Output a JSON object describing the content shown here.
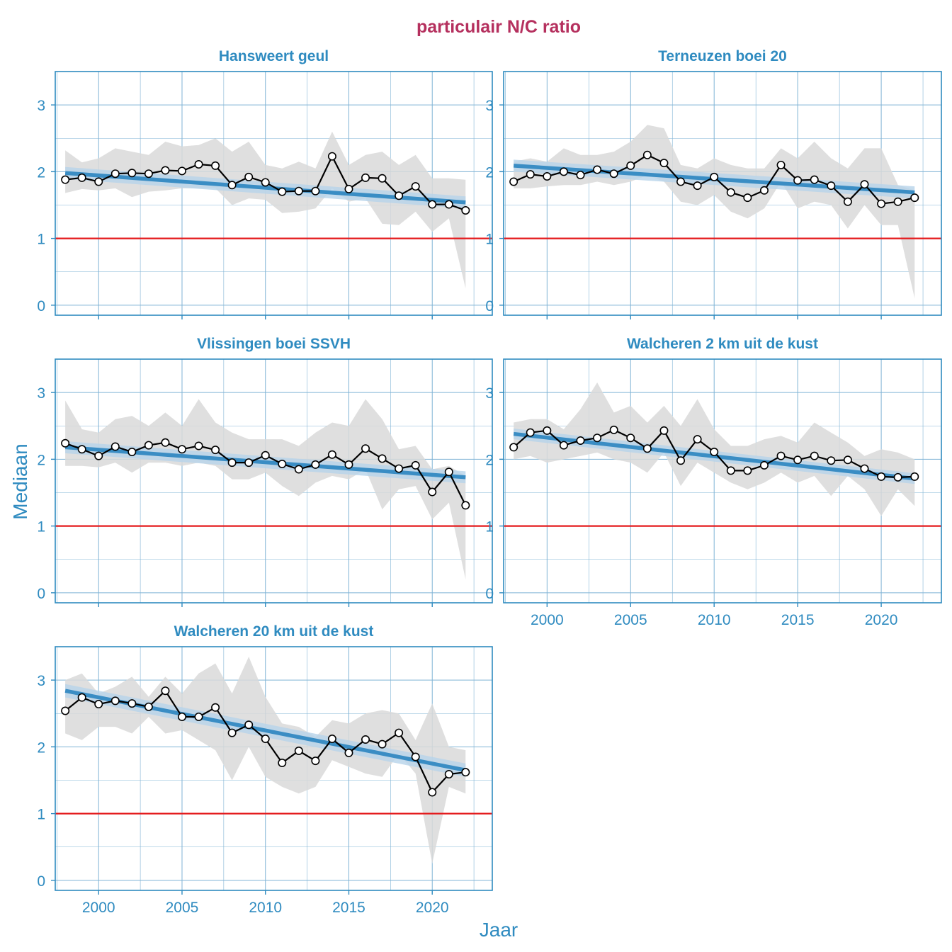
{
  "title": "particulair N/C ratio",
  "xlabel": "Jaar",
  "ylabel": "Mediaan",
  "colors": {
    "title": "#B5305E",
    "text": "#2F8BC0",
    "frame": "#2F8BC0",
    "grid": "#7FB3D5",
    "trend": "#3A8DC4",
    "trend_band": "#B7D3EA",
    "range_band": "#D9D9D9",
    "reference": "#E41A1C",
    "series": "#000000"
  },
  "chart_data": [
    {
      "type": "line",
      "title": "Hansweert geul",
      "x": [
        1998,
        1999,
        2000,
        2001,
        2002,
        2003,
        2004,
        2005,
        2006,
        2007,
        2008,
        2009,
        2010,
        2011,
        2012,
        2013,
        2014,
        2015,
        2016,
        2017,
        2018,
        2019,
        2020,
        2021,
        2022
      ],
      "y": [
        1.88,
        1.91,
        1.85,
        1.97,
        1.98,
        1.97,
        2.02,
        2.01,
        2.11,
        2.09,
        1.8,
        1.92,
        1.84,
        1.7,
        1.71,
        1.71,
        2.23,
        1.74,
        1.91,
        1.9,
        1.64,
        1.78,
        1.51,
        1.51,
        1.42
      ],
      "band_upper": [
        2.32,
        2.14,
        2.2,
        2.35,
        2.3,
        2.25,
        2.45,
        2.38,
        2.4,
        2.5,
        2.3,
        2.45,
        2.1,
        2.05,
        2.15,
        2.05,
        2.6,
        2.1,
        2.25,
        2.3,
        2.1,
        2.25,
        1.9,
        1.9,
        1.88
      ],
      "band_lower": [
        1.68,
        1.74,
        1.72,
        1.75,
        1.62,
        1.7,
        1.72,
        1.75,
        1.75,
        1.75,
        1.5,
        1.6,
        1.58,
        1.38,
        1.4,
        1.45,
        1.75,
        1.55,
        1.6,
        1.22,
        1.2,
        1.4,
        1.1,
        1.3,
        0.25
      ],
      "trend": {
        "x0": 1998,
        "y0": 1.98,
        "x1": 2022,
        "y1": 1.54,
        "band": 0.09
      },
      "reference_y": 1,
      "xlim": [
        1997.4,
        2023.6
      ],
      "ylim": [
        -0.15,
        3.5
      ],
      "yticks": [
        0,
        1,
        2,
        3
      ],
      "xticks": [
        2000,
        2005,
        2010,
        2015,
        2020
      ],
      "show_xtick_labels": false
    },
    {
      "type": "line",
      "title": "Terneuzen boei 20",
      "x": [
        1998,
        1999,
        2000,
        2001,
        2002,
        2003,
        2004,
        2005,
        2006,
        2007,
        2008,
        2009,
        2010,
        2011,
        2012,
        2013,
        2014,
        2015,
        2016,
        2017,
        2018,
        2019,
        2020,
        2021,
        2022
      ],
      "y": [
        1.85,
        1.96,
        1.93,
        2.0,
        1.95,
        2.03,
        1.97,
        2.09,
        2.25,
        2.13,
        1.85,
        1.79,
        1.92,
        1.69,
        1.61,
        1.72,
        2.1,
        1.87,
        1.88,
        1.79,
        1.55,
        1.81,
        1.52,
        1.55,
        1.61
      ],
      "band_upper": [
        2.15,
        2.2,
        2.15,
        2.35,
        2.25,
        2.25,
        2.3,
        2.45,
        2.7,
        2.65,
        2.1,
        2.05,
        2.2,
        2.1,
        2.05,
        2.05,
        2.35,
        2.2,
        2.45,
        2.2,
        2.05,
        2.35,
        2.35,
        1.8,
        1.72
      ],
      "band_lower": [
        1.75,
        1.75,
        1.78,
        1.8,
        1.8,
        1.85,
        1.8,
        1.85,
        1.95,
        1.85,
        1.55,
        1.5,
        1.65,
        1.4,
        1.3,
        1.45,
        1.85,
        1.45,
        1.55,
        1.5,
        1.15,
        1.5,
        1.2,
        1.2,
        0.1
      ],
      "trend": {
        "x0": 1998,
        "y0": 2.09,
        "x1": 2022,
        "y1": 1.69,
        "band": 0.09
      },
      "reference_y": 1,
      "xlim": [
        1997.4,
        2023.6
      ],
      "ylim": [
        -0.15,
        3.5
      ],
      "yticks": [
        0,
        1,
        2,
        3
      ],
      "xticks": [
        2000,
        2005,
        2010,
        2015,
        2020
      ],
      "show_xtick_labels": false
    },
    {
      "type": "line",
      "title": "Vlissingen boei SSVH",
      "x": [
        1998,
        1999,
        2000,
        2001,
        2002,
        2003,
        2004,
        2005,
        2006,
        2007,
        2008,
        2009,
        2010,
        2011,
        2012,
        2013,
        2014,
        2015,
        2016,
        2017,
        2018,
        2019,
        2020,
        2021,
        2022
      ],
      "y": [
        2.24,
        2.15,
        2.05,
        2.19,
        2.11,
        2.21,
        2.25,
        2.15,
        2.2,
        2.14,
        1.95,
        1.95,
        2.06,
        1.93,
        1.85,
        1.92,
        2.07,
        1.92,
        2.16,
        2.01,
        1.86,
        1.91,
        1.51,
        1.81,
        1.31
      ],
      "band_upper": [
        2.88,
        2.45,
        2.4,
        2.6,
        2.65,
        2.5,
        2.7,
        2.5,
        2.9,
        2.55,
        2.4,
        2.3,
        2.3,
        2.3,
        2.2,
        2.4,
        2.55,
        2.5,
        2.9,
        2.6,
        2.15,
        2.2,
        1.85,
        1.9,
        1.75
      ],
      "band_lower": [
        1.9,
        1.9,
        1.88,
        1.95,
        1.8,
        1.95,
        1.95,
        1.9,
        1.95,
        1.9,
        1.7,
        1.7,
        1.8,
        1.6,
        1.45,
        1.65,
        1.75,
        1.7,
        1.85,
        1.25,
        1.55,
        1.6,
        1.1,
        1.35,
        0.2
      ],
      "trend": {
        "x0": 1998,
        "y0": 2.18,
        "x1": 2022,
        "y1": 1.73,
        "band": 0.09
      },
      "reference_y": 1,
      "xlim": [
        1997.4,
        2023.6
      ],
      "ylim": [
        -0.15,
        3.5
      ],
      "yticks": [
        0,
        1,
        2,
        3
      ],
      "xticks": [
        2000,
        2005,
        2010,
        2015,
        2020
      ],
      "show_xtick_labels": false
    },
    {
      "type": "line",
      "title": "Walcheren 2 km uit de kust",
      "x": [
        1998,
        1999,
        2000,
        2001,
        2002,
        2003,
        2004,
        2005,
        2006,
        2007,
        2008,
        2009,
        2010,
        2011,
        2012,
        2013,
        2014,
        2015,
        2016,
        2017,
        2018,
        2019,
        2020,
        2021,
        2022
      ],
      "y": [
        2.18,
        2.4,
        2.43,
        2.21,
        2.28,
        2.32,
        2.44,
        2.32,
        2.16,
        2.43,
        1.98,
        2.3,
        2.11,
        1.83,
        1.83,
        1.91,
        2.05,
        1.99,
        2.05,
        1.98,
        1.99,
        1.86,
        1.74,
        1.73,
        1.74
      ],
      "band_upper": [
        2.55,
        2.6,
        2.6,
        2.45,
        2.75,
        3.15,
        2.7,
        2.8,
        2.55,
        2.8,
        2.5,
        2.9,
        2.45,
        2.2,
        2.2,
        2.3,
        2.35,
        2.25,
        2.55,
        2.4,
        2.25,
        2.05,
        2.15,
        2.1,
        2.0
      ],
      "band_lower": [
        2.0,
        2.05,
        1.95,
        2.0,
        2.05,
        2.1,
        2.0,
        1.95,
        1.8,
        2.1,
        1.6,
        1.95,
        1.8,
        1.65,
        1.55,
        1.65,
        1.8,
        1.65,
        1.75,
        1.45,
        1.75,
        1.55,
        1.15,
        1.55,
        1.3
      ],
      "trend": {
        "x0": 1998,
        "y0": 2.38,
        "x1": 2022,
        "y1": 1.71,
        "band": 0.08
      },
      "reference_y": 1,
      "xlim": [
        1997.4,
        2023.6
      ],
      "ylim": [
        -0.15,
        3.5
      ],
      "yticks": [
        0,
        1,
        2,
        3
      ],
      "xticks": [
        2000,
        2005,
        2010,
        2015,
        2020
      ],
      "show_xtick_labels": true
    },
    {
      "type": "line",
      "title": "Walcheren 20 km uit de kust",
      "x": [
        1998,
        1999,
        2000,
        2001,
        2002,
        2003,
        2004,
        2005,
        2006,
        2007,
        2008,
        2009,
        2010,
        2011,
        2012,
        2013,
        2014,
        2015,
        2016,
        2017,
        2018,
        2019,
        2020,
        2021,
        2022
      ],
      "y": [
        2.54,
        2.74,
        2.64,
        2.69,
        2.65,
        2.6,
        2.84,
        2.45,
        2.45,
        2.59,
        2.21,
        2.33,
        2.12,
        1.76,
        1.94,
        1.79,
        2.12,
        1.91,
        2.11,
        2.04,
        2.21,
        1.85,
        1.32,
        1.59,
        1.62
      ],
      "band_upper": [
        3.0,
        3.1,
        2.8,
        2.9,
        3.05,
        2.75,
        3.05,
        2.8,
        3.1,
        3.25,
        2.8,
        3.35,
        2.75,
        2.35,
        2.3,
        2.15,
        2.4,
        2.35,
        2.5,
        2.55,
        2.5,
        2.1,
        2.65,
        2.0,
        1.95
      ],
      "band_lower": [
        2.2,
        2.1,
        2.3,
        2.3,
        2.2,
        2.45,
        2.2,
        2.25,
        2.1,
        1.95,
        1.5,
        2.0,
        1.55,
        1.4,
        1.3,
        1.4,
        1.8,
        1.7,
        1.6,
        1.55,
        1.9,
        1.6,
        0.25,
        1.4,
        1.3
      ],
      "trend": {
        "x0": 1998,
        "y0": 2.84,
        "x1": 2022,
        "y1": 1.65,
        "band": 0.1
      },
      "reference_y": 1,
      "xlim": [
        1997.4,
        2023.6
      ],
      "ylim": [
        -0.15,
        3.5
      ],
      "yticks": [
        0,
        1,
        2,
        3
      ],
      "xticks": [
        2000,
        2005,
        2010,
        2015,
        2020
      ],
      "show_xtick_labels": true
    }
  ]
}
